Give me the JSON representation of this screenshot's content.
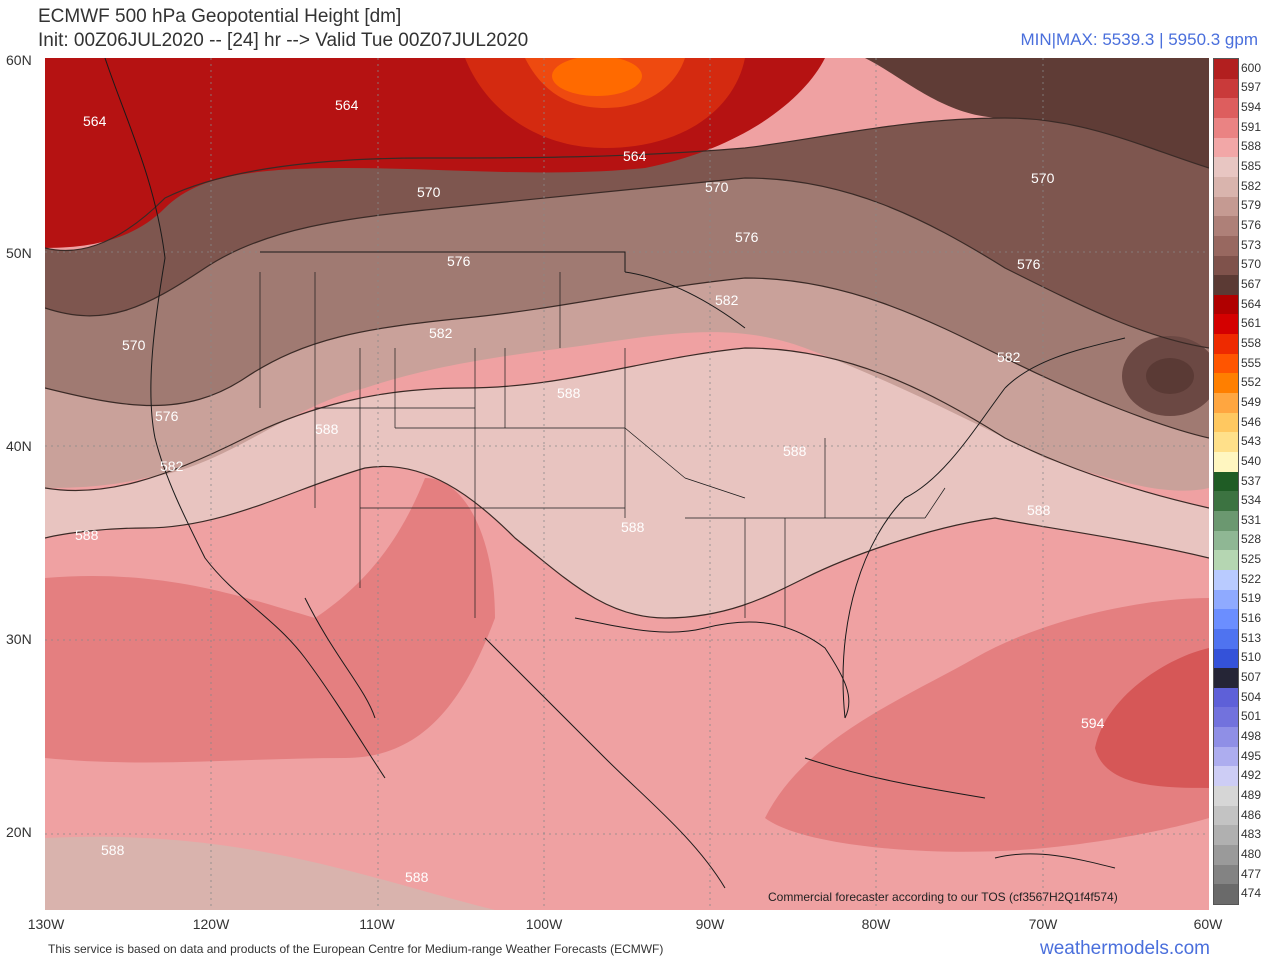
{
  "header": {
    "title": "ECMWF 500 hPa Geopotential Height [dm]",
    "subtitle": "Init: 00Z06JUL2020 -- [24] hr --> Valid Tue 00Z07JUL2020",
    "minmax": "MIN|MAX: 5539.3 | 5950.3 gpm"
  },
  "axes": {
    "lat_labels": [
      "60N",
      "50N",
      "40N",
      "30N",
      "20N"
    ],
    "lon_labels": [
      "130W",
      "120W",
      "110W",
      "100W",
      "90W",
      "80W",
      "70W",
      "60W"
    ]
  },
  "contour_labels": [
    "564",
    "564",
    "564",
    "570",
    "570",
    "570",
    "576",
    "576",
    "576",
    "582",
    "582",
    "570",
    "576",
    "582",
    "588",
    "588",
    "588",
    "582",
    "588",
    "588",
    "588",
    "594",
    "588",
    "588"
  ],
  "colorbar": {
    "levels": [
      "600",
      "597",
      "594",
      "591",
      "588",
      "585",
      "582",
      "579",
      "576",
      "573",
      "570",
      "567",
      "564",
      "561",
      "558",
      "555",
      "552",
      "549",
      "546",
      "543",
      "540",
      "537",
      "534",
      "531",
      "528",
      "525",
      "522",
      "519",
      "516",
      "513",
      "510",
      "507",
      "504",
      "501",
      "498",
      "495",
      "492",
      "489",
      "486",
      "483",
      "480",
      "477",
      "474"
    ],
    "colors": [
      "#b21f1f",
      "#c93a3a",
      "#dd5e5e",
      "#ea8383",
      "#f2a7a7",
      "#e8c6c2",
      "#d9b4ad",
      "#c59a92",
      "#ae8078",
      "#986860",
      "#7f524b",
      "#5b3a34",
      "#b00000",
      "#d40000",
      "#ee2a00",
      "#ff5500",
      "#ff7f00",
      "#ffa640",
      "#ffc860",
      "#ffe08a",
      "#fff6c0",
      "#1f5c25",
      "#3c7341",
      "#6b9870",
      "#8fb794",
      "#b5d6b2",
      "#b9cbff",
      "#8faaff",
      "#6b8eff",
      "#4f73f0",
      "#3452d9",
      "#252536",
      "#5e60d8",
      "#7272dd",
      "#8f8fe6",
      "#adadef",
      "#cdcdf5",
      "#d6d6d6",
      "#c3c3c3",
      "#b0b0b0",
      "#9a9a9a",
      "#838383",
      "#6a6a6a",
      "#4b4b4b"
    ]
  },
  "watermark": "Commercial forecaster according to our TOS (cf3567H2Q1f4f574)",
  "footer": "This service is based on data and products of the European Centre for Medium-range Weather Forecasts (ECMWF)",
  "brand": "weathermodels.com"
}
